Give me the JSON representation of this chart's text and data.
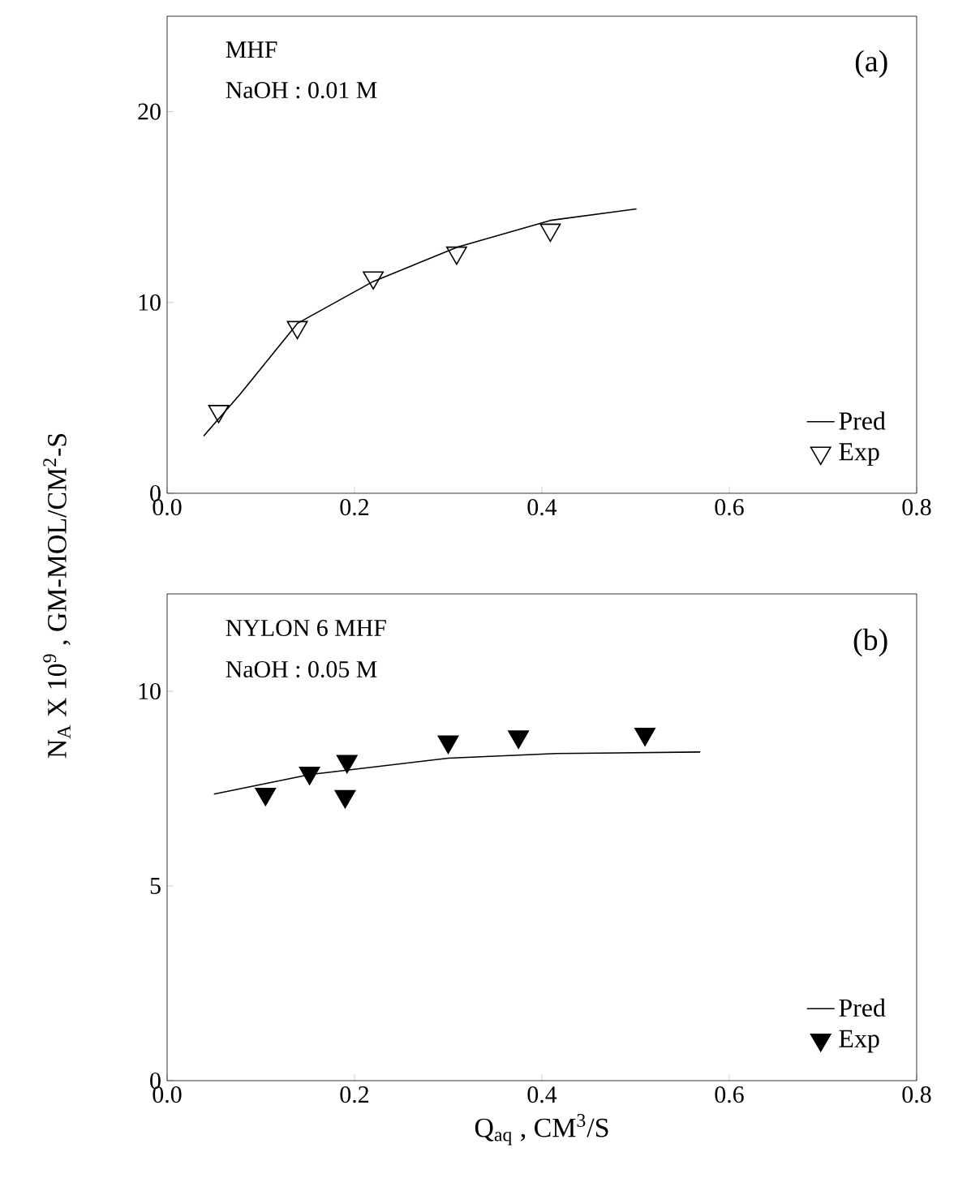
{
  "chart_data": [
    {
      "type": "scatter",
      "xlim": [
        0,
        0.8
      ],
      "ylim": [
        0,
        25
      ],
      "xticks": [
        {
          "value": 0,
          "label": "0.0"
        },
        0.2,
        0.4,
        0.6,
        0.8
      ],
      "yticks": [
        0,
        10,
        20
      ],
      "legend": "bottom right",
      "annotations": [
        "MHF",
        "NaOH : 0.01 M",
        "(a)"
      ],
      "series": [
        {
          "name": "Pred",
          "type": "line",
          "color": "#000000",
          "marker": "none",
          "line_style": "solid",
          "x": [
            0.039,
            0.078,
            0.139,
            0.22,
            0.31,
            0.409,
            0.501
          ],
          "values": [
            3.0,
            5.2,
            8.9,
            11.1,
            12.9,
            14.3,
            14.9
          ]
        },
        {
          "name": "Exp",
          "color": "#000000",
          "marker": "triangle",
          "x": [
            0.055,
            0.139,
            0.22,
            0.309,
            0.409
          ],
          "values": [
            4.3,
            8.7,
            11.3,
            12.6,
            13.8
          ]
        }
      ]
    },
    {
      "type": "scatter",
      "xlim": [
        0,
        0.8
      ],
      "ylim": [
        0,
        12.5
      ],
      "xticks": [
        {
          "value": 0,
          "label": "0.0"
        },
        0.2,
        0.4,
        0.6,
        0.8
      ],
      "yticks": [
        0,
        5,
        10
      ],
      "legend": "bottom right",
      "xlabel": "Q$_{aq}$ , CM$^{3}$/S",
      "ylabel": "N$_{A}$ X 10$^{9}$ , GM-MOL/CM$^{2}$-S",
      "annotations": [
        "NYLON 6 MHF",
        "NaOH : 0.05 M",
        "(b)"
      ],
      "series": [
        {
          "name": "Pred",
          "type": "line",
          "color": "#000000",
          "marker": "none",
          "line_style": "solid",
          "x": [
            0.05,
            0.152,
            0.3,
            0.415,
            0.569
          ],
          "values": [
            7.36,
            7.86,
            8.28,
            8.4,
            8.44
          ]
        },
        {
          "name": "Exp",
          "color": "#000000",
          "marker": "triangle",
          "x": [
            0.105,
            0.152,
            0.192,
            0.19,
            0.3,
            0.375,
            0.51
          ],
          "values": [
            7.36,
            7.9,
            8.2,
            7.3,
            8.7,
            8.83,
            8.9
          ]
        }
      ]
    }
  ]
}
